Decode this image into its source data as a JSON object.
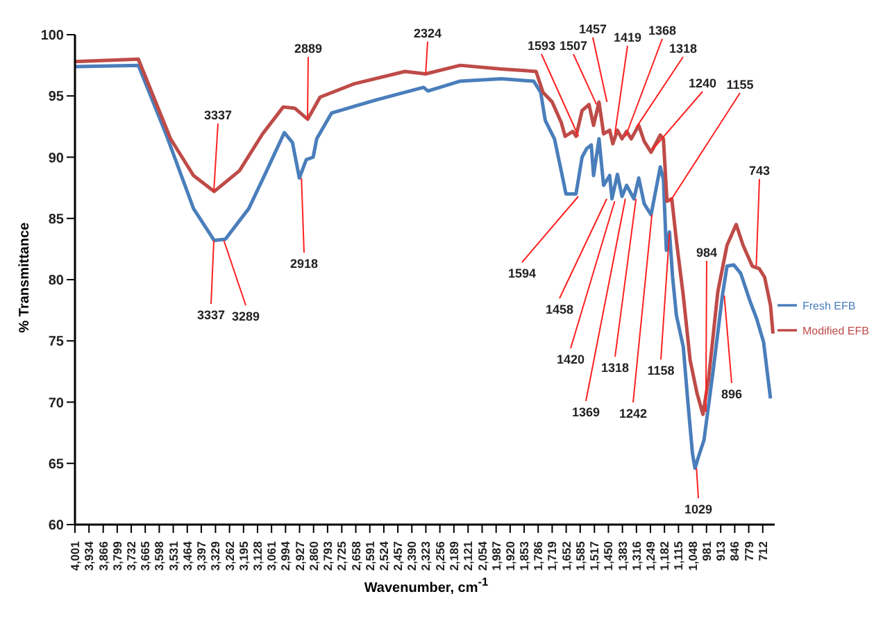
{
  "chart_data": {
    "type": "line",
    "xlabel": "Wavenumber, cm$^{-1}$",
    "ylabel": "% Transmittance",
    "xlim": [
      4001,
      655
    ],
    "xticks": [
      {
        "value": 4001,
        "label": "4,001"
      },
      {
        "value": 3934,
        "label": "3,934"
      },
      {
        "value": 3866,
        "label": "3,866"
      },
      {
        "value": 3799,
        "label": "3,799"
      },
      {
        "value": 3732,
        "label": "3,732"
      },
      {
        "value": 3665,
        "label": "3,665"
      },
      {
        "value": 3598,
        "label": "3,598"
      },
      {
        "value": 3531,
        "label": "3,531"
      },
      {
        "value": 3464,
        "label": "3,464"
      },
      {
        "value": 3397,
        "label": "3,397"
      },
      {
        "value": 3329,
        "label": "3,329"
      },
      {
        "value": 3262,
        "label": "3,262"
      },
      {
        "value": 3195,
        "label": "3,195"
      },
      {
        "value": 3128,
        "label": "3,128"
      },
      {
        "value": 3061,
        "label": "3,061"
      },
      {
        "value": 2994,
        "label": "2,994"
      },
      {
        "value": 2927,
        "label": "2,927"
      },
      {
        "value": 2860,
        "label": "2,860"
      },
      {
        "value": 2793,
        "label": "2,793"
      },
      {
        "value": 2725,
        "label": "2,725"
      },
      {
        "value": 2658,
        "label": "2,658"
      },
      {
        "value": 2591,
        "label": "2,591"
      },
      {
        "value": 2524,
        "label": "2,524"
      },
      {
        "value": 2457,
        "label": "2,457"
      },
      {
        "value": 2390,
        "label": "2,390"
      },
      {
        "value": 2323,
        "label": "2,323"
      },
      {
        "value": 2256,
        "label": "2,256"
      },
      {
        "value": 2189,
        "label": "2,189"
      },
      {
        "value": 2121,
        "label": "2,121"
      },
      {
        "value": 2054,
        "label": "2,054"
      },
      {
        "value": 1987,
        "label": "1,987"
      },
      {
        "value": 1920,
        "label": "1,920"
      },
      {
        "value": 1853,
        "label": "1,853"
      },
      {
        "value": 1786,
        "label": "1,786"
      },
      {
        "value": 1719,
        "label": "1,719"
      },
      {
        "value": 1652,
        "label": "1,652"
      },
      {
        "value": 1585,
        "label": "1,585"
      },
      {
        "value": 1517,
        "label": "1,517"
      },
      {
        "value": 1450,
        "label": "1,450"
      },
      {
        "value": 1383,
        "label": "1,383"
      },
      {
        "value": 1316,
        "label": "1,316"
      },
      {
        "value": 1249,
        "label": "1,249"
      },
      {
        "value": 1182,
        "label": "1,182"
      },
      {
        "value": 1115,
        "label": "1,115"
      },
      {
        "value": 1048,
        "label": "1,048"
      },
      981,
      913,
      846,
      779,
      712
    ],
    "ylim": [
      60,
      100
    ],
    "yticks": [
      60,
      65,
      70,
      75,
      80,
      85,
      90,
      95,
      100
    ],
    "grid": false,
    "legend": "right",
    "series": [
      {
        "name": "Fresh EFB",
        "color": "#4a7ebb",
        "x": [
          4001,
          3698,
          3566,
          3434,
          3335,
          3282,
          3170,
          3084,
          3000,
          2961,
          2928,
          2895,
          2862,
          2845,
          2774,
          2556,
          2334,
          2313,
          2161,
          1961,
          1807,
          1774,
          1752,
          1708,
          1671,
          1653,
          1605,
          1576,
          1554,
          1532,
          1521,
          1495,
          1473,
          1444,
          1433,
          1407,
          1385,
          1363,
          1328,
          1305,
          1279,
          1246,
          1202,
          1187,
          1173,
          1158,
          1143,
          1125,
          1092,
          1070,
          1048,
          1036,
          1020,
          993,
          949,
          905,
          883,
          850,
          817,
          774,
          741,
          708,
          675
        ],
        "values": [
          97.4,
          97.5,
          91.9,
          85.8,
          83.2,
          83.3,
          85.8,
          88.9,
          92.0,
          91.2,
          88.3,
          89.8,
          90.0,
          91.5,
          93.6,
          94.7,
          95.7,
          95.4,
          96.2,
          96.4,
          96.2,
          95.3,
          93.0,
          91.5,
          88.5,
          87.0,
          87.0,
          90.0,
          90.7,
          91.0,
          88.5,
          91.5,
          87.7,
          88.5,
          86.6,
          88.6,
          86.8,
          87.7,
          86.6,
          88.3,
          86.2,
          85.3,
          89.2,
          88.2,
          82.4,
          83.9,
          80.2,
          77.1,
          74.5,
          70.0,
          65.8,
          64.6,
          65.5,
          66.9,
          72.6,
          78.7,
          81.1,
          81.2,
          80.5,
          78.3,
          76.8,
          74.9,
          70.3
        ]
      },
      {
        "name": "Modified EFB",
        "color": "#be4b48",
        "x": [
          4001,
          3698,
          3544,
          3434,
          3335,
          3214,
          3104,
          3005,
          2950,
          2888,
          2829,
          2664,
          2423,
          2324,
          2159,
          1961,
          1796,
          1763,
          1719,
          1675,
          1657,
          1620,
          1605,
          1576,
          1543,
          1521,
          1495,
          1473,
          1444,
          1429,
          1407,
          1385,
          1363,
          1341,
          1305,
          1279,
          1246,
          1202,
          1187,
          1170,
          1147,
          1125,
          1092,
          1059,
          1026,
          998,
          971,
          927,
          883,
          839,
          806,
          762,
          729,
          703,
          675,
          663
        ],
        "values": [
          97.8,
          98.0,
          91.5,
          88.5,
          87.2,
          88.9,
          91.9,
          94.1,
          94.0,
          93.1,
          94.9,
          96.0,
          97.0,
          96.8,
          97.5,
          97.2,
          97.0,
          95.3,
          94.5,
          92.8,
          91.7,
          92.1,
          91.7,
          93.8,
          94.3,
          92.6,
          94.5,
          91.9,
          92.2,
          91.1,
          92.2,
          91.5,
          92.1,
          91.5,
          92.6,
          91.3,
          90.4,
          91.8,
          91.5,
          86.4,
          86.6,
          83.2,
          78.7,
          73.4,
          70.7,
          69.0,
          71.9,
          79.0,
          82.8,
          84.5,
          82.8,
          81.1,
          80.9,
          80.2,
          77.9,
          75.6
        ]
      }
    ],
    "annotations": [
      {
        "text": "3337",
        "x": 3337,
        "y": 87.2
      },
      {
        "text": "2889",
        "x": 2889,
        "y": 93.1
      },
      {
        "text": "2324",
        "x": 2324,
        "y": 96.8
      },
      {
        "text": "1593",
        "x": 1593,
        "y": 91.7
      },
      {
        "text": "1507",
        "x": 1507,
        "y": 94.3
      },
      {
        "text": "1457",
        "x": 1457,
        "y": 94.5
      },
      {
        "text": "1419",
        "x": 1419,
        "y": 91.9
      },
      {
        "text": "1368",
        "x": 1368,
        "y": 91.7
      },
      {
        "text": "1318",
        "x": 1318,
        "y": 92.4
      },
      {
        "text": "1240",
        "x": 1240,
        "y": 90.6
      },
      {
        "text": "1155",
        "x": 1155,
        "y": 86.4
      },
      {
        "text": "743",
        "x": 743,
        "y": 81.1
      },
      {
        "text": "3337",
        "x": 3337,
        "y": 83.2
      },
      {
        "text": "3289",
        "x": 3289,
        "y": 83.2
      },
      {
        "text": "2918",
        "x": 2918,
        "y": 88.3
      },
      {
        "text": "1594",
        "x": 1594,
        "y": 86.8
      },
      {
        "text": "1458",
        "x": 1458,
        "y": 86.6
      },
      {
        "text": "1420",
        "x": 1420,
        "y": 86.4
      },
      {
        "text": "1369",
        "x": 1369,
        "y": 86.6
      },
      {
        "text": "1318",
        "x": 1318,
        "y": 86.6
      },
      {
        "text": "1242",
        "x": 1242,
        "y": 85.3
      },
      {
        "text": "1158",
        "x": 1158,
        "y": 83.8
      },
      {
        "text": "984",
        "x": 984,
        "y": 69.2
      },
      {
        "text": "896",
        "x": 896,
        "y": 78.7
      },
      {
        "text": "1029",
        "x": 1029,
        "y": 64.6
      }
    ]
  }
}
